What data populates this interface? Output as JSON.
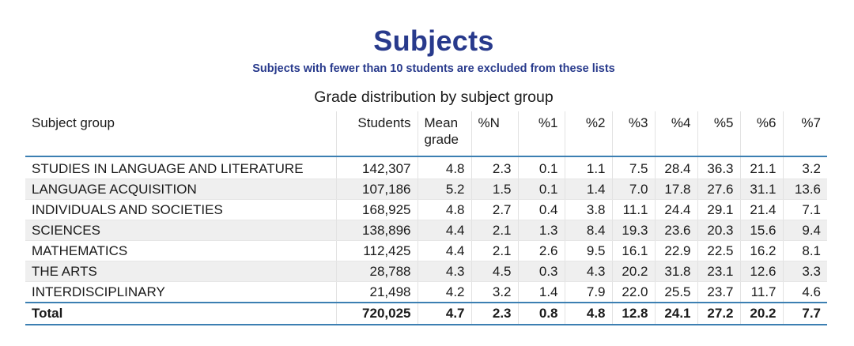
{
  "title": "Subjects",
  "subtitle": "Subjects with fewer than 10 students are excluded from these lists",
  "caption": "Grade distribution by subject group",
  "table": {
    "headers": [
      "Subject group",
      "Students",
      "Mean grade",
      "%N",
      "%1",
      "%2",
      "%3",
      "%4",
      "%5",
      "%6",
      "%7"
    ],
    "rows": [
      [
        "STUDIES IN LANGUAGE AND LITERATURE",
        "142,307",
        "4.8",
        "2.3",
        "0.1",
        "1.1",
        "7.5",
        "28.4",
        "36.3",
        "21.1",
        "3.2"
      ],
      [
        "LANGUAGE ACQUISITION",
        "107,186",
        "5.2",
        "1.5",
        "0.1",
        "1.4",
        "7.0",
        "17.8",
        "27.6",
        "31.1",
        "13.6"
      ],
      [
        "INDIVIDUALS AND SOCIETIES",
        "168,925",
        "4.8",
        "2.7",
        "0.4",
        "3.8",
        "11.1",
        "24.4",
        "29.1",
        "21.4",
        "7.1"
      ],
      [
        "SCIENCES",
        "138,896",
        "4.4",
        "2.1",
        "1.3",
        "8.4",
        "19.3",
        "23.6",
        "20.3",
        "15.6",
        "9.4"
      ],
      [
        "MATHEMATICS",
        "112,425",
        "4.4",
        "2.1",
        "2.6",
        "9.5",
        "16.1",
        "22.9",
        "22.5",
        "16.2",
        "8.1"
      ],
      [
        "THE ARTS",
        "28,788",
        "4.3",
        "4.5",
        "0.3",
        "4.3",
        "20.2",
        "31.8",
        "23.1",
        "12.6",
        "3.3"
      ],
      [
        "INTERDISCIPLINARY",
        "21,498",
        "4.2",
        "3.2",
        "1.4",
        "7.9",
        "22.0",
        "25.5",
        "23.7",
        "11.7",
        "4.6"
      ]
    ],
    "total": [
      "Total",
      "720,025",
      "4.7",
      "2.3",
      "0.8",
      "4.8",
      "12.8",
      "24.1",
      "27.2",
      "20.2",
      "7.7"
    ]
  }
}
